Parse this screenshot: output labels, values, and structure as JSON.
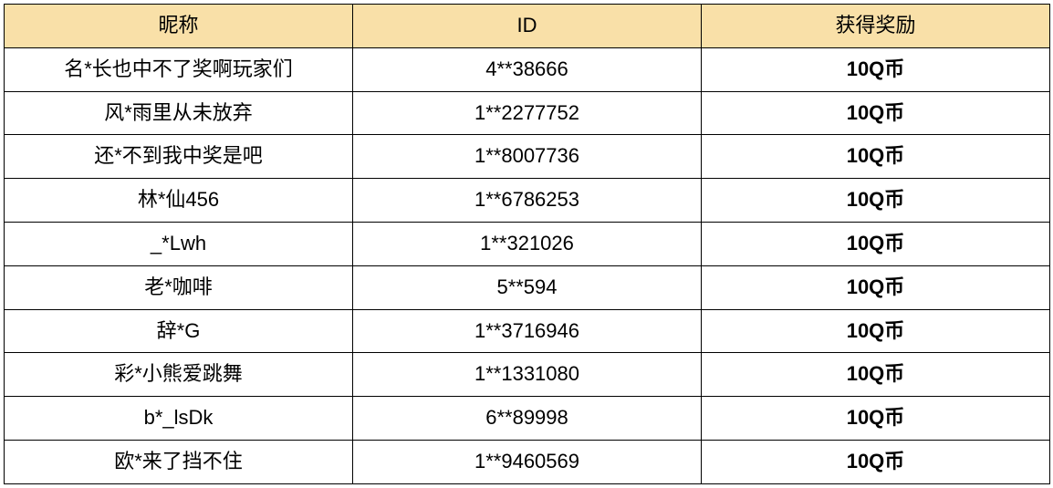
{
  "table": {
    "header_bg": "#f9e0a8",
    "border_color": "#000000",
    "columns": [
      {
        "key": "nickname",
        "label": "昵称"
      },
      {
        "key": "id",
        "label": "ID"
      },
      {
        "key": "reward",
        "label": "获得奖励"
      }
    ],
    "rows": [
      {
        "nickname": "名*长也中不了奖啊玩家们",
        "id": "4**38666",
        "reward": "10Q币"
      },
      {
        "nickname": "风*雨里从未放弃",
        "id": "1**2277752",
        "reward": "10Q币"
      },
      {
        "nickname": "还*不到我中奖是吧",
        "id": "1**8007736",
        "reward": "10Q币"
      },
      {
        "nickname": "林*仙456",
        "id": "1**6786253",
        "reward": "10Q币"
      },
      {
        "nickname": "_*Lwh",
        "id": "1**321026",
        "reward": "10Q币"
      },
      {
        "nickname": "老*咖啡",
        "id": "5**594",
        "reward": "10Q币"
      },
      {
        "nickname": "辞*G",
        "id": "1**3716946",
        "reward": "10Q币"
      },
      {
        "nickname": "彩*小熊爱跳舞",
        "id": "1**1331080",
        "reward": "10Q币"
      },
      {
        "nickname": "b*_lsDk",
        "id": "6**89998",
        "reward": "10Q币"
      },
      {
        "nickname": "欧*来了挡不住",
        "id": "1**9460569",
        "reward": "10Q币"
      }
    ]
  }
}
